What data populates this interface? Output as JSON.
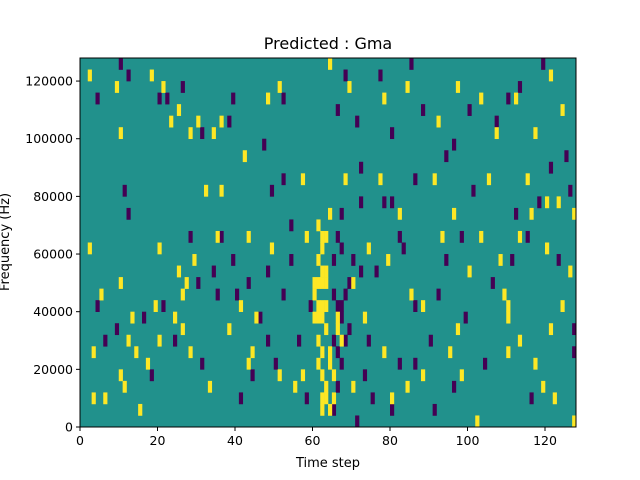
{
  "chart_data": {
    "type": "heatmap",
    "title": "Predicted : Gma",
    "xlabel": "Time step",
    "ylabel": "Frequency (Hz)",
    "xlim": [
      0,
      128
    ],
    "ylim": [
      0,
      128000
    ],
    "x_ticks": [
      0,
      20,
      40,
      60,
      80,
      100,
      120
    ],
    "y_ticks": [
      0,
      20000,
      40000,
      60000,
      80000,
      100000,
      120000
    ],
    "x_tick_labels": [
      "0",
      "20",
      "40",
      "60",
      "80",
      "100",
      "120"
    ],
    "y_tick_labels": [
      "0",
      "20000",
      "40000",
      "60000",
      "80000",
      "100000",
      "120000"
    ],
    "grid": false,
    "colormap": "viridis",
    "value_colors": {
      "-1": "#440154",
      "0": "#21918c",
      "1": "#fde725"
    },
    "background_value": 0,
    "cell_width": 1,
    "cell_height": 4000,
    "cells_high": [
      [
        2,
        120000
      ],
      [
        9,
        116000
      ],
      [
        10,
        100000
      ],
      [
        18,
        120000
      ],
      [
        21,
        116000
      ],
      [
        23,
        104000
      ],
      [
        25,
        108000
      ],
      [
        28,
        100000
      ],
      [
        30,
        104000
      ],
      [
        34,
        100000
      ],
      [
        36,
        104000
      ],
      [
        42,
        92000
      ],
      [
        48,
        112000
      ],
      [
        51,
        116000
      ],
      [
        64,
        124000
      ],
      [
        69,
        116000
      ],
      [
        78,
        112000
      ],
      [
        84,
        116000
      ],
      [
        92,
        104000
      ],
      [
        97,
        116000
      ],
      [
        103,
        112000
      ],
      [
        107,
        100000
      ],
      [
        112,
        112000
      ],
      [
        117,
        100000
      ],
      [
        121,
        120000
      ],
      [
        124,
        108000
      ],
      [
        32,
        80000
      ],
      [
        36,
        80000
      ],
      [
        57,
        84000
      ],
      [
        68,
        84000
      ],
      [
        77,
        84000
      ],
      [
        91,
        84000
      ],
      [
        105,
        84000
      ],
      [
        115,
        84000
      ],
      [
        120,
        76000
      ],
      [
        123,
        76000
      ],
      [
        127,
        72000
      ],
      [
        116,
        72000
      ],
      [
        96,
        72000
      ],
      [
        82,
        72000
      ],
      [
        64,
        72000
      ],
      [
        61,
        68000
      ],
      [
        62,
        64000
      ],
      [
        63,
        64000
      ],
      [
        62,
        60000
      ],
      [
        61,
        56000
      ],
      [
        62,
        52000
      ],
      [
        63,
        52000
      ],
      [
        60,
        48000
      ],
      [
        61,
        48000
      ],
      [
        62,
        48000
      ],
      [
        63,
        48000
      ],
      [
        60,
        44000
      ],
      [
        61,
        40000
      ],
      [
        62,
        40000
      ],
      [
        63,
        40000
      ],
      [
        60,
        36000
      ],
      [
        61,
        36000
      ],
      [
        62,
        36000
      ],
      [
        63,
        32000
      ],
      [
        61,
        28000
      ],
      [
        62,
        24000
      ],
      [
        61,
        20000
      ],
      [
        62,
        16000
      ],
      [
        63,
        12000
      ],
      [
        62,
        8000
      ],
      [
        64,
        4000
      ],
      [
        11,
        12000
      ],
      [
        10,
        16000
      ],
      [
        3,
        24000
      ],
      [
        6,
        8000
      ],
      [
        3,
        8000
      ],
      [
        13,
        36000
      ],
      [
        19,
        40000
      ],
      [
        24,
        36000
      ],
      [
        26,
        32000
      ],
      [
        26,
        44000
      ],
      [
        27,
        48000
      ],
      [
        25,
        52000
      ],
      [
        28,
        24000
      ],
      [
        38,
        32000
      ],
      [
        41,
        40000
      ],
      [
        43,
        20000
      ],
      [
        51,
        16000
      ],
      [
        55,
        12000
      ],
      [
        67,
        28000
      ],
      [
        73,
        36000
      ],
      [
        78,
        24000
      ],
      [
        84,
        12000
      ],
      [
        88,
        40000
      ],
      [
        95,
        24000
      ],
      [
        100,
        52000
      ],
      [
        109,
        44000
      ],
      [
        110,
        36000
      ],
      [
        113,
        28000
      ],
      [
        117,
        20000
      ],
      [
        121,
        32000
      ],
      [
        124,
        40000
      ],
      [
        122,
        8000
      ],
      [
        119,
        12000
      ],
      [
        127,
        0
      ],
      [
        5,
        44000
      ],
      [
        2,
        60000
      ],
      [
        10,
        48000
      ],
      [
        20,
        60000
      ],
      [
        29,
        56000
      ],
      [
        35,
        64000
      ],
      [
        43,
        64000
      ],
      [
        49,
        60000
      ],
      [
        45,
        36000
      ],
      [
        58,
        64000
      ],
      [
        70,
        48000
      ],
      [
        74,
        60000
      ],
      [
        79,
        56000
      ],
      [
        85,
        44000
      ],
      [
        93,
        64000
      ],
      [
        97,
        32000
      ],
      [
        103,
        64000
      ],
      [
        108,
        56000
      ],
      [
        113,
        64000
      ],
      [
        120,
        60000
      ],
      [
        126,
        52000
      ],
      [
        110,
        24000
      ],
      [
        98,
        16000
      ],
      [
        88,
        16000
      ],
      [
        80,
        8000
      ],
      [
        70,
        12000
      ],
      [
        57,
        16000
      ],
      [
        44,
        24000
      ],
      [
        33,
        12000
      ],
      [
        17,
        20000
      ],
      [
        12,
        28000
      ],
      [
        15,
        4000
      ],
      [
        14,
        24000
      ],
      [
        20,
        28000
      ],
      [
        102,
        0
      ],
      [
        110,
        40000
      ],
      [
        66,
        36000
      ],
      [
        66,
        32000
      ],
      [
        64,
        24000
      ],
      [
        64,
        20000
      ],
      [
        65,
        16000
      ],
      [
        63,
        8000
      ],
      [
        62,
        4000
      ],
      [
        65,
        8000
      ]
    ],
    "cells_low": [
      [
        4,
        112000
      ],
      [
        10,
        124000
      ],
      [
        12,
        120000
      ],
      [
        20,
        112000
      ],
      [
        22,
        112000
      ],
      [
        26,
        116000
      ],
      [
        31,
        100000
      ],
      [
        38,
        104000
      ],
      [
        39,
        112000
      ],
      [
        47,
        96000
      ],
      [
        52,
        112000
      ],
      [
        66,
        108000
      ],
      [
        68,
        120000
      ],
      [
        71,
        104000
      ],
      [
        77,
        120000
      ],
      [
        80,
        100000
      ],
      [
        85,
        124000
      ],
      [
        88,
        108000
      ],
      [
        96,
        96000
      ],
      [
        100,
        108000
      ],
      [
        107,
        104000
      ],
      [
        110,
        112000
      ],
      [
        113,
        116000
      ],
      [
        119,
        124000
      ],
      [
        125,
        92000
      ],
      [
        11,
        80000
      ],
      [
        12,
        72000
      ],
      [
        49,
        80000
      ],
      [
        52,
        84000
      ],
      [
        72,
        76000
      ],
      [
        78,
        76000
      ],
      [
        80,
        76000
      ],
      [
        86,
        84000
      ],
      [
        94,
        92000
      ],
      [
        101,
        80000
      ],
      [
        112,
        72000
      ],
      [
        118,
        76000
      ],
      [
        121,
        88000
      ],
      [
        126,
        80000
      ],
      [
        66,
        64000
      ],
      [
        67,
        60000
      ],
      [
        70,
        56000
      ],
      [
        72,
        52000
      ],
      [
        68,
        44000
      ],
      [
        66,
        40000
      ],
      [
        67,
        36000
      ],
      [
        69,
        32000
      ],
      [
        65,
        28000
      ],
      [
        66,
        24000
      ],
      [
        67,
        20000
      ],
      [
        73,
        16000
      ],
      [
        75,
        8000
      ],
      [
        80,
        4000
      ],
      [
        9,
        32000
      ],
      [
        16,
        36000
      ],
      [
        21,
        40000
      ],
      [
        30,
        48000
      ],
      [
        34,
        52000
      ],
      [
        40,
        44000
      ],
      [
        46,
        36000
      ],
      [
        48,
        28000
      ],
      [
        44,
        16000
      ],
      [
        41,
        8000
      ],
      [
        36,
        64000
      ],
      [
        28,
        64000
      ],
      [
        39,
        56000
      ],
      [
        52,
        44000
      ],
      [
        56,
        28000
      ],
      [
        59,
        40000
      ],
      [
        69,
        48000
      ],
      [
        76,
        52000
      ],
      [
        82,
        64000
      ],
      [
        83,
        60000
      ],
      [
        86,
        40000
      ],
      [
        90,
        28000
      ],
      [
        92,
        44000
      ],
      [
        94,
        56000
      ],
      [
        99,
        36000
      ],
      [
        104,
        20000
      ],
      [
        106,
        48000
      ],
      [
        111,
        56000
      ],
      [
        115,
        64000
      ],
      [
        123,
        56000
      ],
      [
        127,
        32000
      ],
      [
        127,
        24000
      ],
      [
        116,
        8000
      ],
      [
        96,
        12000
      ],
      [
        91,
        4000
      ],
      [
        82,
        20000
      ],
      [
        74,
        28000
      ],
      [
        71,
        0
      ],
      [
        58,
        8000
      ],
      [
        50,
        20000
      ],
      [
        31,
        20000
      ],
      [
        24,
        28000
      ],
      [
        18,
        16000
      ],
      [
        6,
        28000
      ],
      [
        4,
        40000
      ],
      [
        35,
        44000
      ],
      [
        43,
        48000
      ],
      [
        54,
        56000
      ],
      [
        48,
        52000
      ],
      [
        54,
        68000
      ],
      [
        86,
        20000
      ],
      [
        98,
        64000
      ],
      [
        67,
        72000
      ],
      [
        72,
        88000
      ],
      [
        65,
        4000
      ],
      [
        66,
        12000
      ],
      [
        65,
        56000
      ],
      [
        68,
        28000
      ],
      [
        67,
        40000
      ],
      [
        65,
        44000
      ]
    ]
  }
}
